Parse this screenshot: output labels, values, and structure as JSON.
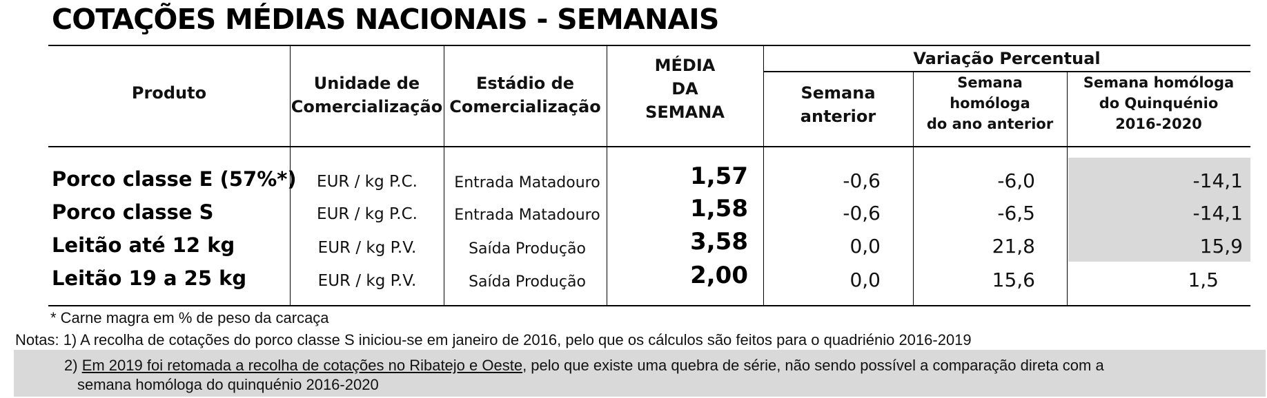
{
  "title": "COTAÇÕES MÉDIAS NACIONAIS - SEMANAIS",
  "headers": {
    "produto": "Produto",
    "unidade": [
      "Unidade de",
      "Comercialização"
    ],
    "estadio": [
      "Estádio de",
      "Comercialização"
    ],
    "media": [
      "MÉDIA",
      "DA",
      "SEMANA"
    ],
    "variacao": "Variação Percentual",
    "semana_anterior": [
      "Semana",
      "anterior"
    ],
    "semana_homologa": [
      "Semana",
      "homóloga",
      "do ano anterior"
    ],
    "semana_quinquenio": [
      "Semana homóloga",
      "do Quinquénio",
      "2016-2020"
    ]
  },
  "rows": [
    {
      "produto": "Porco classe E (57%*)",
      "unidade": "EUR / kg P.C.",
      "estadio": "Entrada Matadouro",
      "media": "1,57",
      "anterior": "-0,6",
      "homologa": "-6,0",
      "quinquenio": "-14,1"
    },
    {
      "produto": "Porco classe S",
      "unidade": "EUR / kg P.C.",
      "estadio": "Entrada Matadouro",
      "media": "1,58",
      "anterior": "-0,6",
      "homologa": "-6,5",
      "quinquenio": "-14,1"
    },
    {
      "produto": "Leitão até 12 kg",
      "unidade": "EUR / kg P.V.",
      "estadio": "Saída Produção",
      "media": "3,58",
      "anterior": "0,0",
      "homologa": "21,8",
      "quinquenio": "15,9"
    },
    {
      "produto": "Leitão 19 a 25 kg",
      "unidade": "EUR / kg P.V.",
      "estadio": "Saída Produção",
      "media": "2,00",
      "anterior": "0,0",
      "homologa": "15,6",
      "quinquenio": "1,5"
    }
  ],
  "footnote": "* Carne magra em % de peso da carcaça",
  "notes": {
    "note1": "Notas: 1) A recolha de cotações do porco classe S iniciou-se em janeiro de 2016, pelo que os cálculos são feitos para o quadriénio 2016-2019",
    "note2_prefix": "2) ",
    "note2_underlined": "Em 2019 foi retomada a recolha de cotações no Ribatejo e Oeste",
    "note2_rest": ", pelo que existe uma quebra de série, não sendo possível a comparação direta com a",
    "note2_line2": "semana homóloga do quinquénio 2016-2020"
  },
  "colors": {
    "shade": "#d9d9d9",
    "rule": "#000000"
  }
}
